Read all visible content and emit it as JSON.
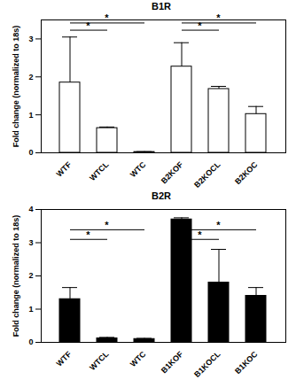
{
  "chart_data": [
    {
      "type": "bar",
      "title": "B1R",
      "y_label": "Fold change (normalized to 18s)",
      "categories": [
        "WTF",
        "WTCL",
        "WTC",
        "B2KOF",
        "B2KOCL",
        "B2KOC"
      ],
      "values": [
        1.85,
        0.65,
        0.02,
        2.27,
        1.68,
        1.02
      ],
      "errors": [
        1.2,
        0.03,
        0.01,
        0.63,
        0.07,
        0.2
      ],
      "color": "#ffffff",
      "ylim": [
        0,
        3.5
      ],
      "yticks": [
        0,
        1,
        2,
        3
      ],
      "significance": [
        {
          "from": "WTF",
          "to": "WTC",
          "y": 3.42,
          "label": "*"
        },
        {
          "from": "WTF",
          "to": "WTCL",
          "y": 3.23,
          "label": "*"
        },
        {
          "from": "B2KOF",
          "to": "B2KOC",
          "y": 3.42,
          "label": "*"
        },
        {
          "from": "B2KOF",
          "to": "B2KOCL",
          "y": 3.23,
          "label": "*"
        }
      ]
    },
    {
      "type": "bar",
      "title": "B2R",
      "y_label": "Fold change (normalized to 18s)",
      "categories": [
        "WTF",
        "WTCL",
        "WTC",
        "B1KOF",
        "B1KOCL",
        "B1KOC"
      ],
      "values": [
        1.3,
        0.12,
        0.1,
        3.7,
        1.8,
        1.4
      ],
      "errors": [
        0.35,
        0.03,
        0.02,
        0.05,
        1.0,
        0.25
      ],
      "color": "#000000",
      "ylim": [
        0,
        4
      ],
      "yticks": [
        0,
        1,
        2,
        3,
        4
      ],
      "significance": [
        {
          "from": "WTF",
          "to": "WTC",
          "y": 3.39,
          "label": "*"
        },
        {
          "from": "WTF",
          "to": "WTCL",
          "y": 3.1,
          "label": "*"
        },
        {
          "from": "B1KOF",
          "to": "B1KOC",
          "y": 3.39,
          "label": "*"
        },
        {
          "from": "B1KOF",
          "to": "B1KOCL",
          "y": 3.1,
          "label": "*"
        }
      ]
    }
  ]
}
